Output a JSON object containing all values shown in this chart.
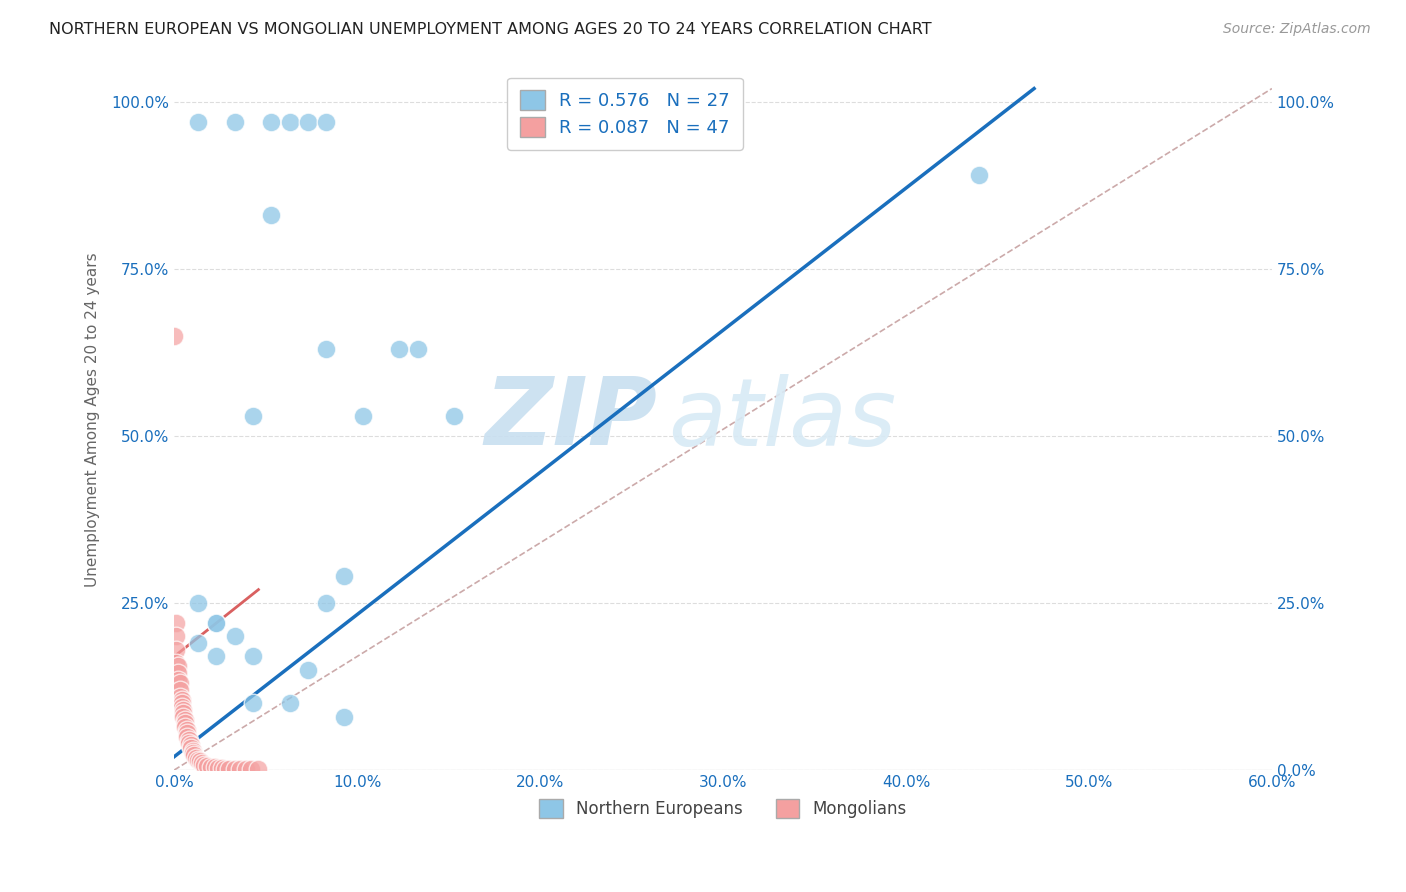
{
  "title": "NORTHERN EUROPEAN VS MONGOLIAN UNEMPLOYMENT AMONG AGES 20 TO 24 YEARS CORRELATION CHART",
  "source": "Source: ZipAtlas.com",
  "ylabel": "Unemployment Among Ages 20 to 24 years",
  "xlim": [
    0,
    0.6
  ],
  "ylim": [
    0,
    1.05
  ],
  "blue_R": 0.576,
  "blue_N": 27,
  "pink_R": 0.087,
  "pink_N": 47,
  "blue_color": "#8ec6e6",
  "pink_color": "#f4a0a0",
  "blue_line_color": "#1a6fbd",
  "pink_line_color": "#d96060",
  "dashed_line_color": "#ccaaaa",
  "watermark_zip": "ZIP",
  "watermark_atlas": "atlas",
  "blue_scatter_x": [
    0.013,
    0.033,
    0.053,
    0.063,
    0.073,
    0.083,
    0.053,
    0.043,
    0.083,
    0.103,
    0.133,
    0.123,
    0.153,
    0.013,
    0.023,
    0.023,
    0.043,
    0.073,
    0.093,
    0.043,
    0.033,
    0.023,
    0.013,
    0.083,
    0.063,
    0.093,
    0.44
  ],
  "blue_scatter_y": [
    0.97,
    0.97,
    0.97,
    0.97,
    0.97,
    0.97,
    0.83,
    0.53,
    0.63,
    0.53,
    0.63,
    0.63,
    0.53,
    0.25,
    0.22,
    0.17,
    0.17,
    0.15,
    0.29,
    0.1,
    0.2,
    0.22,
    0.19,
    0.25,
    0.1,
    0.08,
    0.89
  ],
  "pink_scatter_x": [
    0.001,
    0.001,
    0.001,
    0.001,
    0.002,
    0.002,
    0.002,
    0.003,
    0.003,
    0.003,
    0.004,
    0.004,
    0.004,
    0.005,
    0.005,
    0.005,
    0.006,
    0.006,
    0.006,
    0.007,
    0.007,
    0.007,
    0.008,
    0.008,
    0.009,
    0.009,
    0.01,
    0.01,
    0.011,
    0.012,
    0.013,
    0.014,
    0.015,
    0.016,
    0.018,
    0.02,
    0.022,
    0.024,
    0.026,
    0.028,
    0.03,
    0.033,
    0.036,
    0.039,
    0.042,
    0.046,
    0.0
  ],
  "pink_scatter_y": [
    0.22,
    0.2,
    0.18,
    0.16,
    0.155,
    0.145,
    0.135,
    0.13,
    0.12,
    0.11,
    0.105,
    0.1,
    0.095,
    0.09,
    0.085,
    0.08,
    0.075,
    0.07,
    0.065,
    0.06,
    0.055,
    0.05,
    0.045,
    0.04,
    0.038,
    0.033,
    0.028,
    0.025,
    0.022,
    0.018,
    0.015,
    0.013,
    0.01,
    0.008,
    0.006,
    0.005,
    0.004,
    0.003,
    0.003,
    0.002,
    0.002,
    0.001,
    0.001,
    0.001,
    0.001,
    0.001,
    0.65
  ],
  "blue_line_x0": 0.0,
  "blue_line_y0": 0.02,
  "blue_line_x1": 0.47,
  "blue_line_y1": 1.02,
  "pink_line_x0": 0.0,
  "pink_line_x1": 0.046,
  "pink_line_y0": 0.17,
  "pink_line_y1": 0.27,
  "dashed_line_x0": 0.0,
  "dashed_line_x1": 0.6,
  "dashed_line_y0": 0.0,
  "dashed_line_y1": 1.02,
  "scatter_size": 180,
  "legend_text_color": "#1a6fbd",
  "axis_tick_color": "#1a6fbd"
}
